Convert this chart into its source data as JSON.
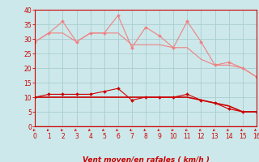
{
  "xlabel": "Vent moyen/en rafales ( km/h )",
  "x": [
    0,
    1,
    2,
    3,
    4,
    5,
    6,
    7,
    8,
    9,
    10,
    11,
    12,
    13,
    14,
    15,
    16
  ],
  "line1": [
    29,
    32,
    36,
    29,
    32,
    32,
    38,
    27,
    34,
    31,
    27,
    36,
    29,
    21,
    22,
    20,
    17
  ],
  "line2": [
    29,
    32,
    32,
    29,
    32,
    32,
    32,
    28,
    28,
    28,
    27,
    27,
    23,
    21,
    21,
    20,
    17
  ],
  "line3": [
    10,
    11,
    11,
    11,
    11,
    12,
    13,
    9,
    10,
    10,
    10,
    11,
    9,
    8,
    6,
    5,
    5
  ],
  "line4": [
    10,
    10,
    10,
    10,
    10,
    10,
    10,
    10,
    10,
    10,
    10,
    10,
    9,
    8,
    7,
    5,
    5
  ],
  "color_light": "#f08080",
  "color_dark": "#cc0000",
  "bg_color": "#cce8ea",
  "grid_color": "#aacdd0",
  "axis_color": "#cc0000",
  "ylim": [
    0,
    40
  ],
  "xlim": [
    0,
    16
  ],
  "yticks": [
    0,
    5,
    10,
    15,
    20,
    25,
    30,
    35,
    40
  ],
  "xticks": [
    0,
    1,
    2,
    3,
    4,
    5,
    6,
    7,
    8,
    9,
    10,
    11,
    12,
    13,
    14,
    15,
    16
  ],
  "marker_size": 2.0,
  "lw_thin": 0.8,
  "lw_thick": 1.2,
  "tick_fontsize": 5.5,
  "xlabel_fontsize": 6.5
}
